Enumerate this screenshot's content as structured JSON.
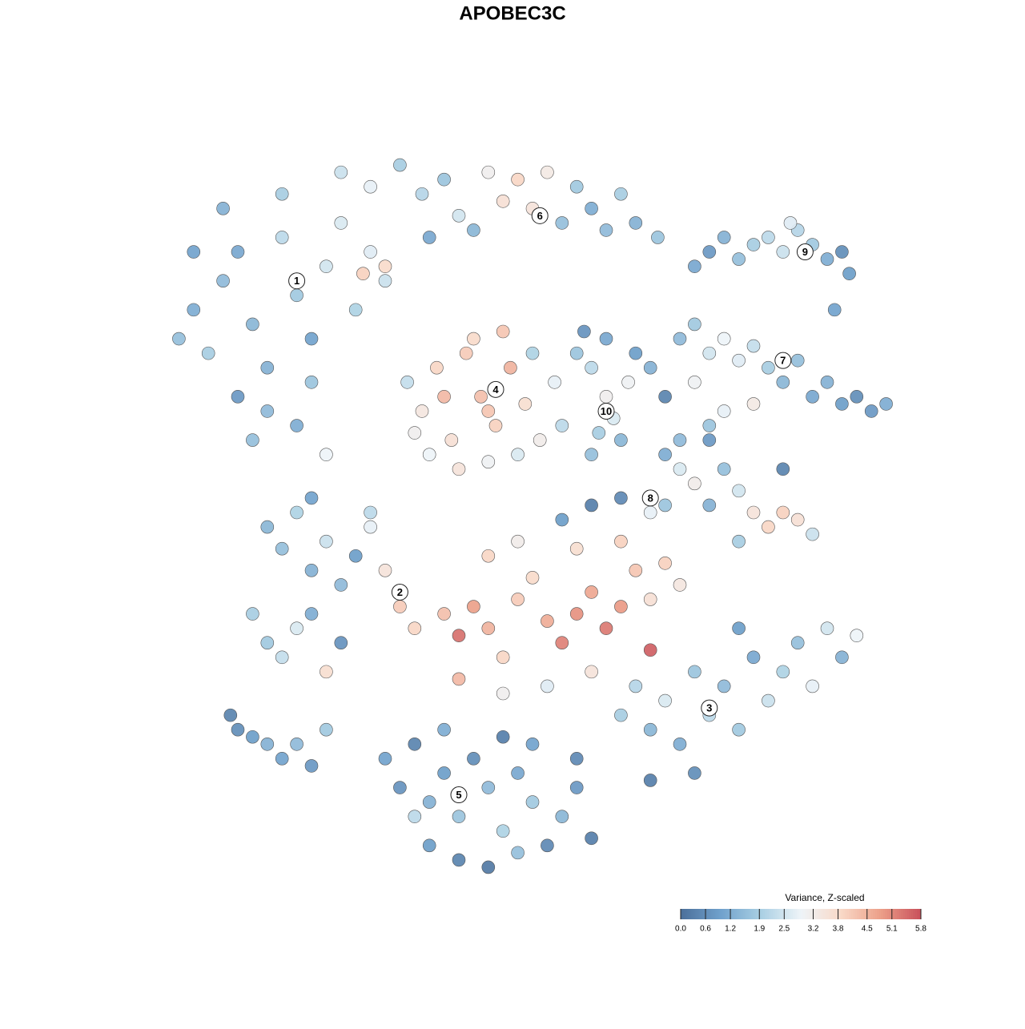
{
  "chart_data": {
    "type": "scatter",
    "title": "APOBEC3C",
    "xlim": [
      0,
      100
    ],
    "ylim": [
      0,
      100
    ],
    "x": [
      2,
      4,
      6,
      8,
      10,
      12,
      14,
      16,
      18,
      20,
      22,
      24,
      26,
      28,
      30,
      14,
      18,
      20,
      12,
      22,
      8,
      4,
      16,
      10,
      27,
      30,
      24,
      28,
      32,
      35,
      38,
      40,
      44,
      46,
      48,
      50,
      52,
      54,
      56,
      58,
      60,
      62,
      64,
      67,
      42,
      36,
      33,
      35,
      37,
      39,
      41,
      43,
      45,
      47,
      49,
      51,
      53,
      36,
      40,
      44,
      48,
      42,
      46,
      50,
      34,
      38,
      44,
      54,
      56,
      58,
      60,
      61,
      59,
      62,
      64,
      66,
      60,
      57,
      63,
      58,
      72,
      74,
      76,
      78,
      80,
      82,
      84,
      86,
      88,
      90,
      92,
      93,
      91,
      85,
      70,
      72,
      74,
      76,
      78,
      80,
      82,
      84,
      86,
      88,
      90,
      92,
      94,
      96,
      98,
      72,
      76,
      80,
      68,
      74,
      68,
      70,
      72,
      70,
      74,
      76,
      78,
      80,
      82,
      84,
      86,
      88,
      78,
      74,
      68,
      66,
      62,
      58,
      54,
      84,
      14,
      16,
      18,
      20,
      22,
      24,
      26,
      28,
      30,
      32,
      34,
      14,
      16,
      18,
      20,
      22,
      24,
      12,
      28,
      20,
      38,
      40,
      42,
      44,
      46,
      48,
      50,
      52,
      54,
      56,
      58,
      60,
      62,
      64,
      66,
      68,
      70,
      44,
      48,
      56,
      62,
      40,
      46,
      52,
      58,
      66,
      62,
      64,
      66,
      68,
      70,
      72,
      74,
      76,
      78,
      80,
      82,
      84,
      86,
      88,
      90,
      92,
      94,
      72,
      66,
      78,
      30,
      32,
      34,
      36,
      38,
      40,
      42,
      44,
      46,
      48,
      50,
      52,
      54,
      56,
      58,
      36,
      40,
      44,
      48,
      34,
      38,
      46,
      50,
      56,
      10,
      12,
      14,
      16,
      18,
      20,
      9,
      22
    ],
    "values": [
      74,
      78,
      72,
      82,
      86,
      76,
      70,
      88,
      80,
      74,
      84,
      90,
      78,
      86,
      82,
      64,
      62,
      68,
      60,
      58,
      92,
      86,
      94,
      66,
      83,
      84,
      97,
      95,
      98,
      94,
      96,
      91,
      97,
      93,
      96,
      92,
      97,
      90,
      95,
      92,
      89,
      94,
      90,
      88,
      89,
      88,
      68,
      64,
      70,
      60,
      72,
      66,
      62,
      70,
      65,
      60,
      68,
      58,
      56,
      57,
      58,
      74,
      75,
      72,
      61,
      66,
      64,
      62,
      72,
      70,
      66,
      63,
      61,
      60,
      72,
      70,
      74,
      75,
      68,
      58,
      84,
      86,
      88,
      85,
      87,
      88,
      86,
      89,
      87,
      85,
      86,
      83,
      78,
      90,
      74,
      76,
      72,
      74,
      71,
      73,
      70,
      68,
      71,
      66,
      68,
      65,
      66,
      64,
      65,
      68,
      64,
      65,
      66,
      62,
      58,
      56,
      54,
      60,
      60,
      56,
      53,
      50,
      48,
      50,
      49,
      47,
      46,
      51,
      51,
      50,
      52,
      51,
      49,
      56,
      48,
      45,
      50,
      42,
      46,
      40,
      44,
      48,
      42,
      37,
      34,
      32,
      30,
      34,
      36,
      28,
      32,
      36,
      50,
      52,
      36,
      33,
      37,
      34,
      30,
      38,
      41,
      35,
      32,
      36,
      39,
      34,
      37,
      42,
      38,
      43,
      40,
      44,
      46,
      45,
      46,
      27,
      25,
      26,
      28,
      31,
      22,
      26,
      20,
      24,
      18,
      28,
      22,
      26,
      20,
      30,
      24,
      28,
      32,
      26,
      34,
      30,
      33,
      14,
      13,
      34,
      16,
      12,
      18,
      10,
      14,
      8,
      16,
      12,
      6,
      14,
      10,
      4,
      8,
      12,
      5,
      4,
      2,
      1,
      3,
      8,
      20,
      19,
      18,
      16,
      20,
      19,
      18,
      16,
      18,
      15,
      22,
      20
    ],
    "z": [
      1.6,
      1.2,
      1.9,
      1.5,
      1.1,
      1.4,
      1.3,
      2.2,
      1.8,
      1.0,
      2.5,
      2.6,
      2.0,
      2.7,
      2.4,
      1.5,
      1.2,
      1.7,
      1.6,
      2.9,
      1.3,
      1.0,
      1.9,
      0.8,
      4.0,
      3.8,
      2.4,
      2.8,
      1.9,
      2.1,
      1.7,
      2.5,
      3.1,
      3.6,
      3.9,
      3.5,
      3.3,
      1.6,
      1.8,
      1.2,
      1.5,
      1.9,
      1.3,
      1.7,
      1.4,
      1.1,
      2.3,
      3.4,
      3.9,
      3.6,
      4.1,
      4.3,
      4.0,
      4.5,
      3.7,
      3.2,
      2.8,
      2.9,
      3.5,
      3.0,
      2.6,
      3.8,
      4.2,
      2.0,
      3.1,
      4.4,
      4.2,
      2.2,
      1.7,
      2.2,
      3.1,
      2.6,
      1.9,
      1.4,
      0.9,
      1.3,
      1.1,
      0.7,
      3.0,
      1.6,
      1.1,
      0.8,
      1.3,
      1.6,
      1.9,
      2.2,
      2.4,
      2.1,
      1.8,
      1.2,
      0.6,
      0.9,
      1.0,
      2.7,
      1.5,
      1.8,
      2.5,
      2.9,
      2.7,
      2.3,
      1.9,
      1.4,
      1.6,
      1.1,
      1.3,
      0.9,
      0.6,
      0.8,
      1.2,
      3.0,
      2.8,
      3.3,
      0.4,
      1.7,
      1.2,
      2.6,
      3.2,
      1.5,
      0.8,
      1.6,
      2.5,
      3.5,
      3.9,
      4.0,
      3.6,
      2.4,
      1.9,
      1.3,
      1.7,
      2.8,
      0.5,
      0.3,
      0.9,
      0.4,
      1.4,
      1.6,
      2.0,
      1.3,
      2.4,
      1.5,
      0.9,
      2.8,
      3.5,
      4.1,
      3.9,
      1.8,
      2.3,
      2.6,
      1.2,
      3.7,
      0.7,
      1.9,
      2.2,
      1.0,
      4.3,
      5.4,
      4.8,
      4.5,
      3.9,
      4.1,
      3.8,
      4.6,
      5.2,
      5.0,
      4.7,
      5.3,
      4.9,
      4.2,
      3.6,
      4.0,
      3.4,
      3.9,
      3.2,
      3.7,
      4.0,
      4.4,
      3.1,
      2.7,
      3.5,
      5.6,
      1.9,
      2.1,
      1.4,
      2.6,
      1.2,
      1.7,
      2.2,
      1.5,
      1.8,
      1.1,
      2.4,
      2.0,
      1.6,
      2.8,
      2.5,
      1.3,
      2.9,
      0.6,
      0.3,
      0.9,
      1.0,
      0.7,
      0.4,
      1.3,
      0.9,
      1.7,
      0.6,
      1.5,
      2.0,
      1.1,
      1.8,
      0.5,
      1.4,
      0.8,
      0.3,
      0.9,
      0.4,
      0.2,
      1.6,
      2.2,
      1.2,
      0.3,
      1.0,
      0.5,
      0.6,
      0.9,
      1.3,
      1.0,
      1.5,
      0.8,
      0.4,
      1.8
    ],
    "clusters": [
      {
        "label": "1",
        "x": 18,
        "y": 82
      },
      {
        "label": "2",
        "x": 32,
        "y": 39
      },
      {
        "label": "3",
        "x": 74,
        "y": 23
      },
      {
        "label": "4",
        "x": 45,
        "y": 67
      },
      {
        "label": "5",
        "x": 40,
        "y": 11
      },
      {
        "label": "6",
        "x": 51,
        "y": 91
      },
      {
        "label": "7",
        "x": 84,
        "y": 71
      },
      {
        "label": "8",
        "x": 66,
        "y": 52
      },
      {
        "label": "9",
        "x": 87,
        "y": 86
      },
      {
        "label": "10",
        "x": 60,
        "y": 64
      }
    ],
    "colorbar": {
      "title": "Variance, Z-scaled",
      "lim": [
        0,
        5.8
      ],
      "colors": [
        "#4b6f9a",
        "#70a1cc",
        "#a9cfe3",
        "#eef4f8",
        "#f9d9c8",
        "#ec9f88",
        "#c8505b"
      ],
      "ticks": [
        {
          "value": 0,
          "label": "0.0"
        },
        0.6,
        1.2,
        1.9,
        2.5,
        3.2,
        3.8,
        4.5,
        5.1,
        5.8
      ]
    }
  }
}
